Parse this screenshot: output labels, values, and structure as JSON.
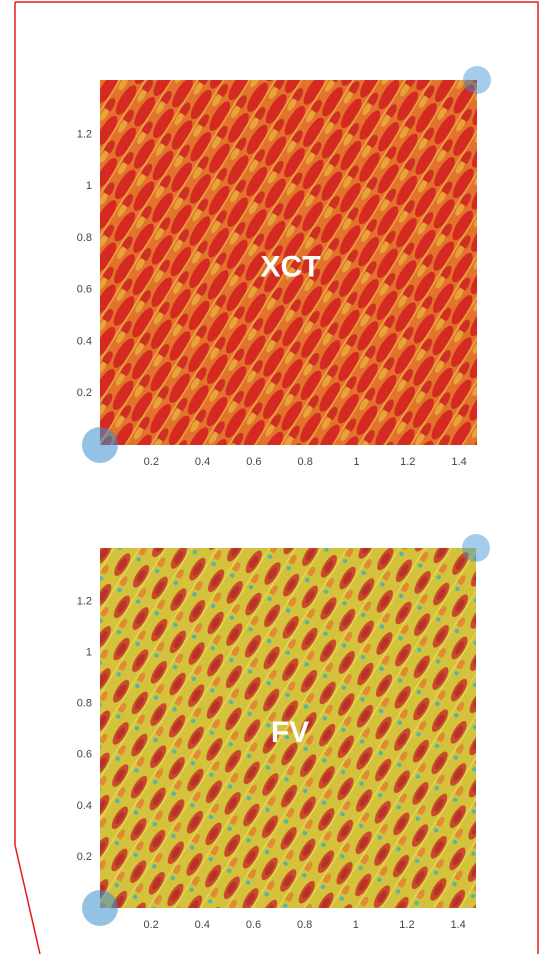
{
  "chart_data": [
    {
      "type": "image",
      "annotation": "XCT",
      "xlim": [
        0,
        1.47
      ],
      "ylim": [
        0,
        1.41
      ],
      "xticks": [
        0.2,
        0.4,
        0.6,
        0.8,
        1,
        1.2,
        1.4
      ],
      "yticks": [
        0.2,
        0.4,
        0.6,
        0.8,
        1,
        1.2
      ]
    },
    {
      "type": "image",
      "annotation": "FV",
      "xlim": [
        0,
        1.47
      ],
      "ylim": [
        0,
        1.41
      ],
      "xticks": [
        0.2,
        0.4,
        0.6,
        0.8,
        1,
        1.2,
        1.4
      ],
      "yticks": [
        0.2,
        0.4,
        0.6,
        0.8,
        1,
        1.2
      ]
    }
  ]
}
